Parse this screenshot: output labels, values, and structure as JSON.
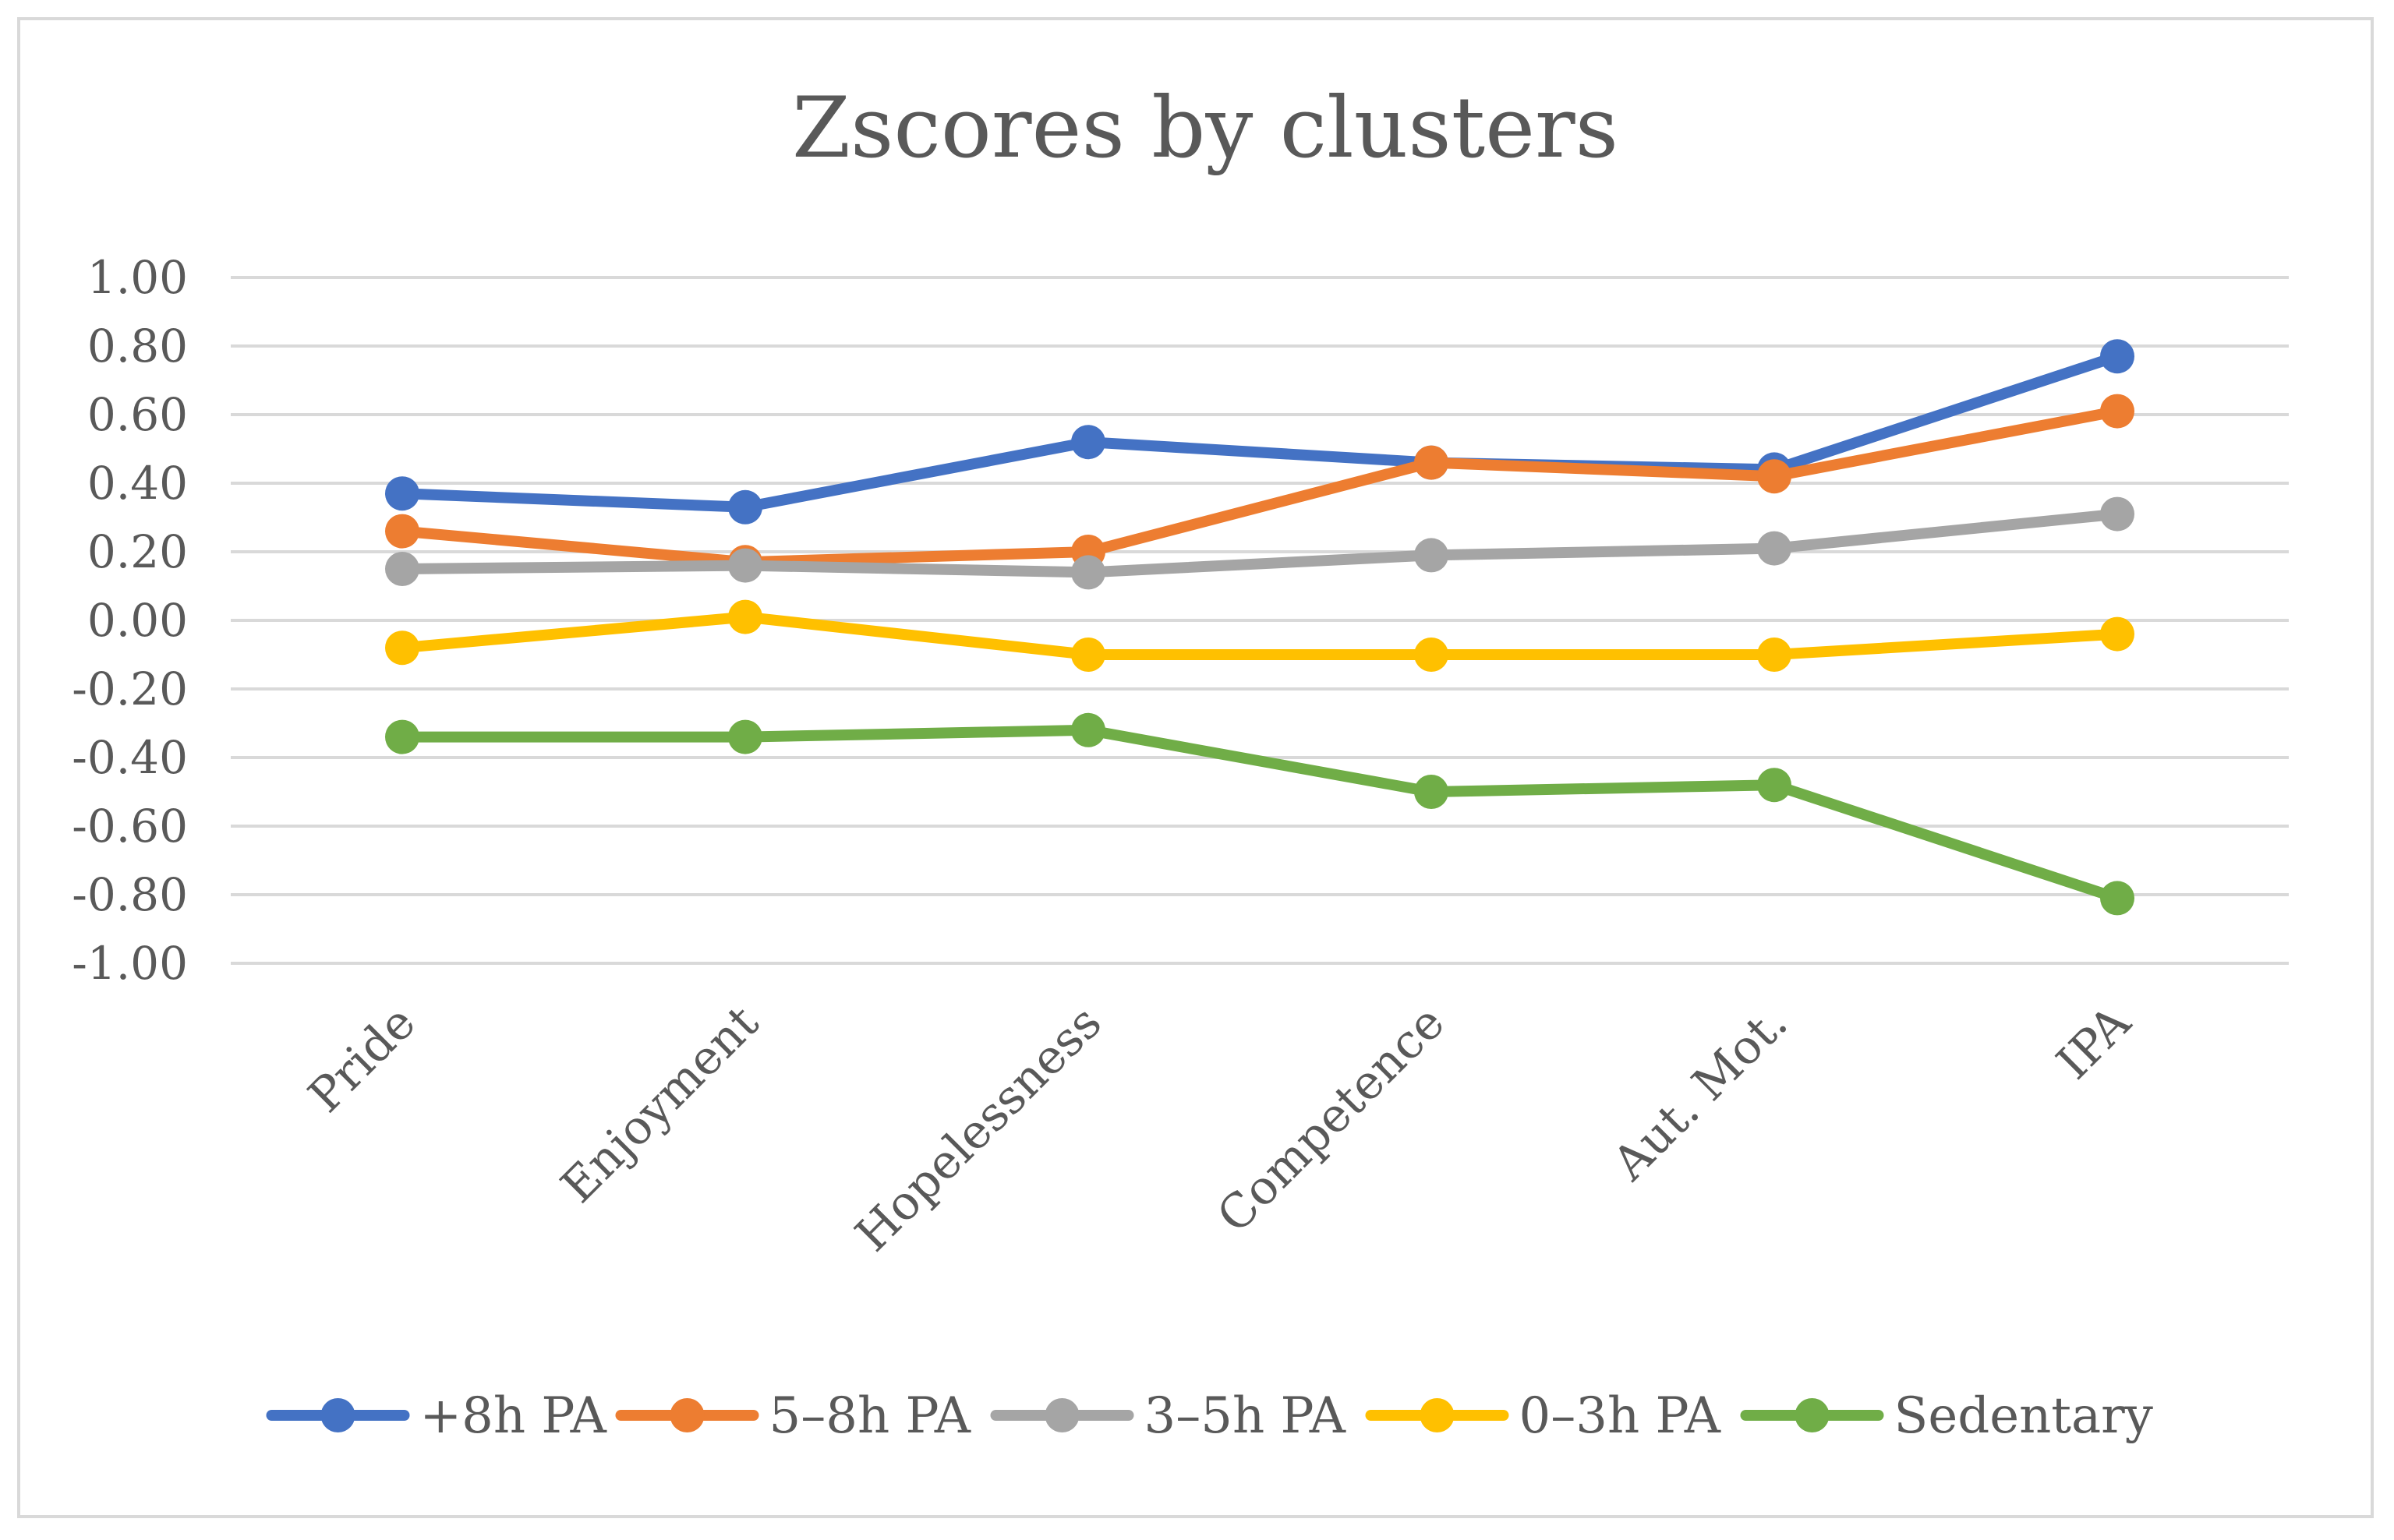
{
  "chart_data": {
    "type": "line",
    "title": "Zscores by clusters",
    "xlabel": "",
    "ylabel": "",
    "ylim": [
      -1.0,
      1.0
    ],
    "yticks": [
      "1.00",
      "0.80",
      "0.60",
      "0.40",
      "0.20",
      "0.00",
      "-0.20",
      "-0.40",
      "-0.60",
      "-0.80",
      "-1.00"
    ],
    "ytick_values": [
      1.0,
      0.8,
      0.6,
      0.4,
      0.2,
      0.0,
      -0.2,
      -0.4,
      -0.6,
      -0.8,
      -1.0
    ],
    "grid": true,
    "legend_position": "bottom",
    "categories": [
      "Pride",
      "Enjoyment",
      "Hopelessness",
      "Competence",
      "Aut. Mot.",
      "IPA"
    ],
    "series": [
      {
        "name": "+8h PA",
        "color": "#4472C4",
        "values": [
          0.37,
          0.33,
          0.52,
          0.46,
          0.44,
          0.77
        ]
      },
      {
        "name": "5–8h PA",
        "color": "#ED7D31",
        "values": [
          0.26,
          0.17,
          0.2,
          0.46,
          0.42,
          0.61
        ]
      },
      {
        "name": "3–5h PA",
        "color": "#A5A5A5",
        "values": [
          0.15,
          0.16,
          0.14,
          0.19,
          0.21,
          0.31
        ]
      },
      {
        "name": "0–3h PA",
        "color": "#FFC000",
        "values": [
          -0.08,
          0.01,
          -0.1,
          -0.1,
          -0.1,
          -0.04
        ]
      },
      {
        "name": "Sedentary",
        "color": "#70AD47",
        "values": [
          -0.34,
          -0.34,
          -0.32,
          -0.5,
          -0.48,
          -0.81
        ]
      }
    ]
  },
  "colors": {
    "gridline": "#d9d9d9",
    "text": "#595959",
    "border": "#d9d9d9"
  }
}
